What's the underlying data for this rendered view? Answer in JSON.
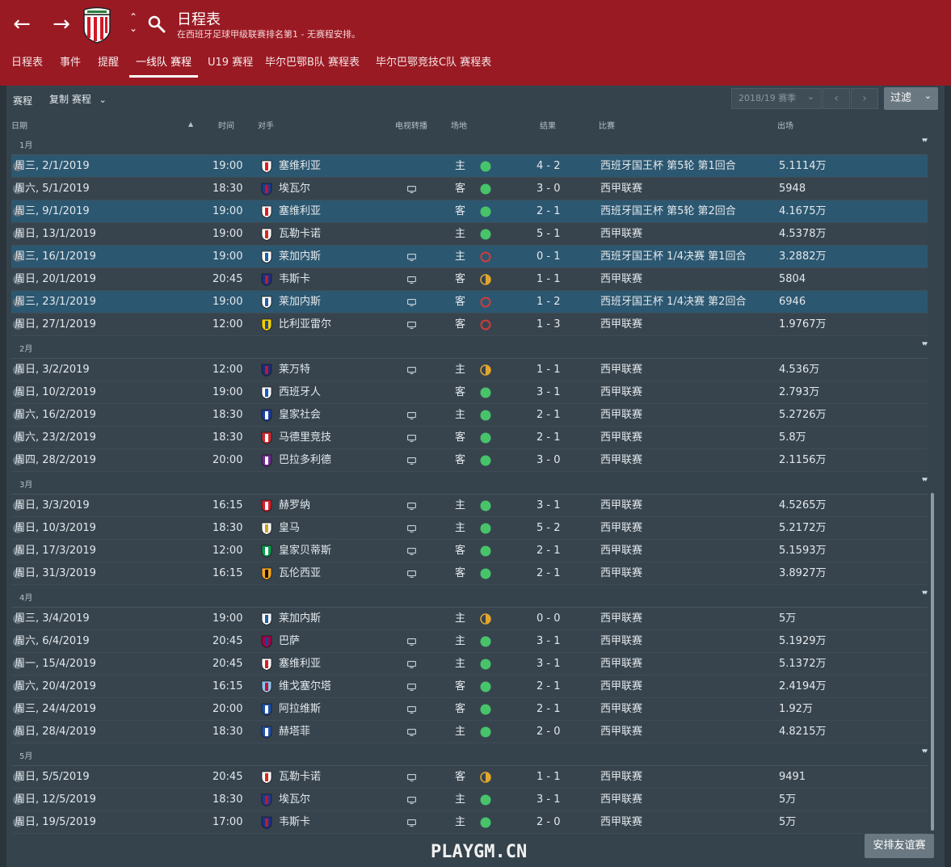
{
  "header": {
    "title": "日程表",
    "subtitle": "在西班牙足球甲级联赛排名第1 - 无赛程安排。",
    "tabs": [
      "日程表",
      "事件",
      "提醒",
      "一线队 赛程",
      "U19 赛程",
      "毕尔巴鄂B队 赛程表",
      "毕尔巴鄂竞技C队 赛程表"
    ],
    "active_tab": 3
  },
  "toolbar": {
    "label": "赛程",
    "copy_label": "复制 赛程",
    "season": "2018/19 赛季",
    "filter_label": "过滤"
  },
  "columns": {
    "date": "日期",
    "time": "时间",
    "opponent": "对手",
    "tv": "电视转播",
    "venue": "场地",
    "result": "结果",
    "competition": "比赛",
    "attendance": "出场"
  },
  "colors": {
    "win": "#47c46a",
    "draw": "#e2a62c",
    "loss": "#d23a3a",
    "header_red": "#9a1a23",
    "highlight_row": "#2c5770"
  },
  "months": [
    {
      "label": "1月",
      "matches": [
        {
          "date": "周三, 2/1/2019",
          "time": "19:00",
          "opponent": "塞维利亚",
          "crest": "sevilla",
          "tv": false,
          "venue": "主",
          "outcome": "win",
          "score": "4 - 2",
          "competition": "西班牙国王杯 第5轮 第1回合",
          "attendance": "5.1114万",
          "highlight": true
        },
        {
          "date": "周六, 5/1/2019",
          "time": "18:30",
          "opponent": "埃瓦尔",
          "crest": "eibar",
          "tv": true,
          "venue": "客",
          "outcome": "win",
          "score": "3 - 0",
          "competition": "西甲联赛",
          "attendance": "5948",
          "highlight": false
        },
        {
          "date": "周三, 9/1/2019",
          "time": "19:00",
          "opponent": "塞维利亚",
          "crest": "sevilla",
          "tv": false,
          "venue": "客",
          "outcome": "win",
          "score": "2 - 1",
          "competition": "西班牙国王杯 第5轮 第2回合",
          "attendance": "4.1675万",
          "highlight": true
        },
        {
          "date": "周日, 13/1/2019",
          "time": "19:00",
          "opponent": "瓦勒卡诺",
          "crest": "rayo",
          "tv": false,
          "venue": "主",
          "outcome": "win",
          "score": "5 - 1",
          "competition": "西甲联赛",
          "attendance": "4.5378万",
          "highlight": false
        },
        {
          "date": "周三, 16/1/2019",
          "time": "19:00",
          "opponent": "莱加内斯",
          "crest": "leganes",
          "tv": true,
          "venue": "主",
          "outcome": "loss",
          "score": "0 - 1",
          "competition": "西班牙国王杯 1/4决赛 第1回合",
          "attendance": "3.2882万",
          "highlight": true
        },
        {
          "date": "周日, 20/1/2019",
          "time": "20:45",
          "opponent": "韦斯卡",
          "crest": "huesca",
          "tv": true,
          "venue": "客",
          "outcome": "draw",
          "score": "1 - 1",
          "competition": "西甲联赛",
          "attendance": "5804",
          "highlight": false
        },
        {
          "date": "周三, 23/1/2019",
          "time": "19:00",
          "opponent": "莱加内斯",
          "crest": "leganes",
          "tv": true,
          "venue": "客",
          "outcome": "loss",
          "score": "1 - 2",
          "competition": "西班牙国王杯 1/4决赛 第2回合",
          "attendance": "6946",
          "highlight": true
        },
        {
          "date": "周日, 27/1/2019",
          "time": "12:00",
          "opponent": "比利亚雷尔",
          "crest": "villarreal",
          "tv": true,
          "venue": "客",
          "outcome": "loss",
          "score": "1 - 3",
          "competition": "西甲联赛",
          "attendance": "1.9767万",
          "highlight": false
        }
      ]
    },
    {
      "label": "2月",
      "matches": [
        {
          "date": "周日, 3/2/2019",
          "time": "12:00",
          "opponent": "莱万特",
          "crest": "levante",
          "tv": true,
          "venue": "主",
          "outcome": "draw",
          "score": "1 - 1",
          "competition": "西甲联赛",
          "attendance": "4.536万",
          "highlight": false
        },
        {
          "date": "周日, 10/2/2019",
          "time": "19:00",
          "opponent": "西班牙人",
          "crest": "espanyol",
          "tv": false,
          "venue": "客",
          "outcome": "win",
          "score": "3 - 1",
          "competition": "西甲联赛",
          "attendance": "2.793万",
          "highlight": false
        },
        {
          "date": "周六, 16/2/2019",
          "time": "18:30",
          "opponent": "皇家社会",
          "crest": "realsociedad",
          "tv": true,
          "venue": "主",
          "outcome": "win",
          "score": "2 - 1",
          "competition": "西甲联赛",
          "attendance": "5.2726万",
          "highlight": false
        },
        {
          "date": "周六, 23/2/2019",
          "time": "18:30",
          "opponent": "马德里竞技",
          "crest": "atletico",
          "tv": true,
          "venue": "客",
          "outcome": "win",
          "score": "2 - 1",
          "competition": "西甲联赛",
          "attendance": "5.8万",
          "highlight": false
        },
        {
          "date": "周四, 28/2/2019",
          "time": "20:00",
          "opponent": "巴拉多利德",
          "crest": "valladolid",
          "tv": true,
          "venue": "客",
          "outcome": "win",
          "score": "3 - 0",
          "competition": "西甲联赛",
          "attendance": "2.1156万",
          "highlight": false
        }
      ]
    },
    {
      "label": "3月",
      "matches": [
        {
          "date": "周日, 3/3/2019",
          "time": "16:15",
          "opponent": "赫罗纳",
          "crest": "girona",
          "tv": true,
          "venue": "主",
          "outcome": "win",
          "score": "3 - 1",
          "competition": "西甲联赛",
          "attendance": "4.5265万",
          "highlight": false
        },
        {
          "date": "周日, 10/3/2019",
          "time": "18:30",
          "opponent": "皇马",
          "crest": "realmadrid",
          "tv": true,
          "venue": "主",
          "outcome": "win",
          "score": "5 - 2",
          "competition": "西甲联赛",
          "attendance": "5.2172万",
          "highlight": false
        },
        {
          "date": "周日, 17/3/2019",
          "time": "12:00",
          "opponent": "皇家贝蒂斯",
          "crest": "betis",
          "tv": true,
          "venue": "客",
          "outcome": "win",
          "score": "2 - 1",
          "competition": "西甲联赛",
          "attendance": "5.1593万",
          "highlight": false
        },
        {
          "date": "周日, 31/3/2019",
          "time": "16:15",
          "opponent": "瓦伦西亚",
          "crest": "valencia",
          "tv": true,
          "venue": "客",
          "outcome": "win",
          "score": "2 - 1",
          "competition": "西甲联赛",
          "attendance": "3.8927万",
          "highlight": false
        }
      ]
    },
    {
      "label": "4月",
      "matches": [
        {
          "date": "周三, 3/4/2019",
          "time": "19:00",
          "opponent": "莱加内斯",
          "crest": "leganes",
          "tv": false,
          "venue": "主",
          "outcome": "draw",
          "score": "0 - 0",
          "competition": "西甲联赛",
          "attendance": "5万",
          "highlight": false
        },
        {
          "date": "周六, 6/4/2019",
          "time": "20:45",
          "opponent": "巴萨",
          "crest": "barcelona",
          "tv": true,
          "venue": "主",
          "outcome": "win",
          "score": "3 - 1",
          "competition": "西甲联赛",
          "attendance": "5.1929万",
          "highlight": false
        },
        {
          "date": "周一, 15/4/2019",
          "time": "20:45",
          "opponent": "塞维利亚",
          "crest": "sevilla",
          "tv": true,
          "venue": "主",
          "outcome": "win",
          "score": "3 - 1",
          "competition": "西甲联赛",
          "attendance": "5.1372万",
          "highlight": false
        },
        {
          "date": "周六, 20/4/2019",
          "time": "16:15",
          "opponent": "维戈塞尔塔",
          "crest": "celta",
          "tv": true,
          "venue": "客",
          "outcome": "win",
          "score": "2 - 1",
          "competition": "西甲联赛",
          "attendance": "2.4194万",
          "highlight": false
        },
        {
          "date": "周三, 24/4/2019",
          "time": "20:00",
          "opponent": "阿拉维斯",
          "crest": "alaves",
          "tv": true,
          "venue": "客",
          "outcome": "win",
          "score": "2 - 1",
          "competition": "西甲联赛",
          "attendance": "1.92万",
          "highlight": false
        },
        {
          "date": "周日, 28/4/2019",
          "time": "18:30",
          "opponent": "赫塔菲",
          "crest": "getafe",
          "tv": true,
          "venue": "主",
          "outcome": "win",
          "score": "2 - 0",
          "competition": "西甲联赛",
          "attendance": "4.8215万",
          "highlight": false
        }
      ]
    },
    {
      "label": "5月",
      "matches": [
        {
          "date": "周日, 5/5/2019",
          "time": "20:45",
          "opponent": "瓦勒卡诺",
          "crest": "rayo",
          "tv": true,
          "venue": "客",
          "outcome": "draw",
          "score": "1 - 1",
          "competition": "西甲联赛",
          "attendance": "9491",
          "highlight": false
        },
        {
          "date": "周日, 12/5/2019",
          "time": "18:30",
          "opponent": "埃瓦尔",
          "crest": "eibar",
          "tv": true,
          "venue": "主",
          "outcome": "win",
          "score": "3 - 1",
          "competition": "西甲联赛",
          "attendance": "5万",
          "highlight": false
        },
        {
          "date": "周日, 19/5/2019",
          "time": "17:00",
          "opponent": "韦斯卡",
          "crest": "huesca",
          "tv": true,
          "venue": "主",
          "outcome": "win",
          "score": "2 - 0",
          "competition": "西甲联赛",
          "attendance": "5万",
          "highlight": false
        }
      ]
    }
  ],
  "crest_colors": {
    "sevilla": [
      "#ffffff",
      "#d81f26"
    ],
    "eibar": [
      "#1e3c8c",
      "#c8102e"
    ],
    "rayo": [
      "#ffffff",
      "#d52b1e"
    ],
    "leganes": [
      "#ffffff",
      "#1d5fa8"
    ],
    "huesca": [
      "#1c2f86",
      "#b3202b"
    ],
    "villarreal": [
      "#f5d000",
      "#1a4a9c"
    ],
    "levante": [
      "#1a2d7a",
      "#b41c2c"
    ],
    "espanyol": [
      "#ffffff",
      "#1a5cb0"
    ],
    "realsociedad": [
      "#1a3f9a",
      "#ffffff"
    ],
    "atletico": [
      "#cb2b31",
      "#ffffff"
    ],
    "valladolid": [
      "#6b2c8f",
      "#ffffff"
    ],
    "girona": [
      "#d41f2c",
      "#ffffff"
    ],
    "realmadrid": [
      "#ffffff",
      "#c9a227"
    ],
    "betis": [
      "#0b9a4d",
      "#ffffff"
    ],
    "valencia": [
      "#f5a623",
      "#111111"
    ],
    "barcelona": [
      "#a50044",
      "#004d98"
    ],
    "celta": [
      "#8ac2ea",
      "#c8102e"
    ],
    "alaves": [
      "#1c4fa3",
      "#ffffff"
    ],
    "getafe": [
      "#2452a6",
      "#ffffff"
    ]
  },
  "footer": {
    "arrange_friendly": "安排友谊赛",
    "watermark": "PLAYGM.CN"
  }
}
